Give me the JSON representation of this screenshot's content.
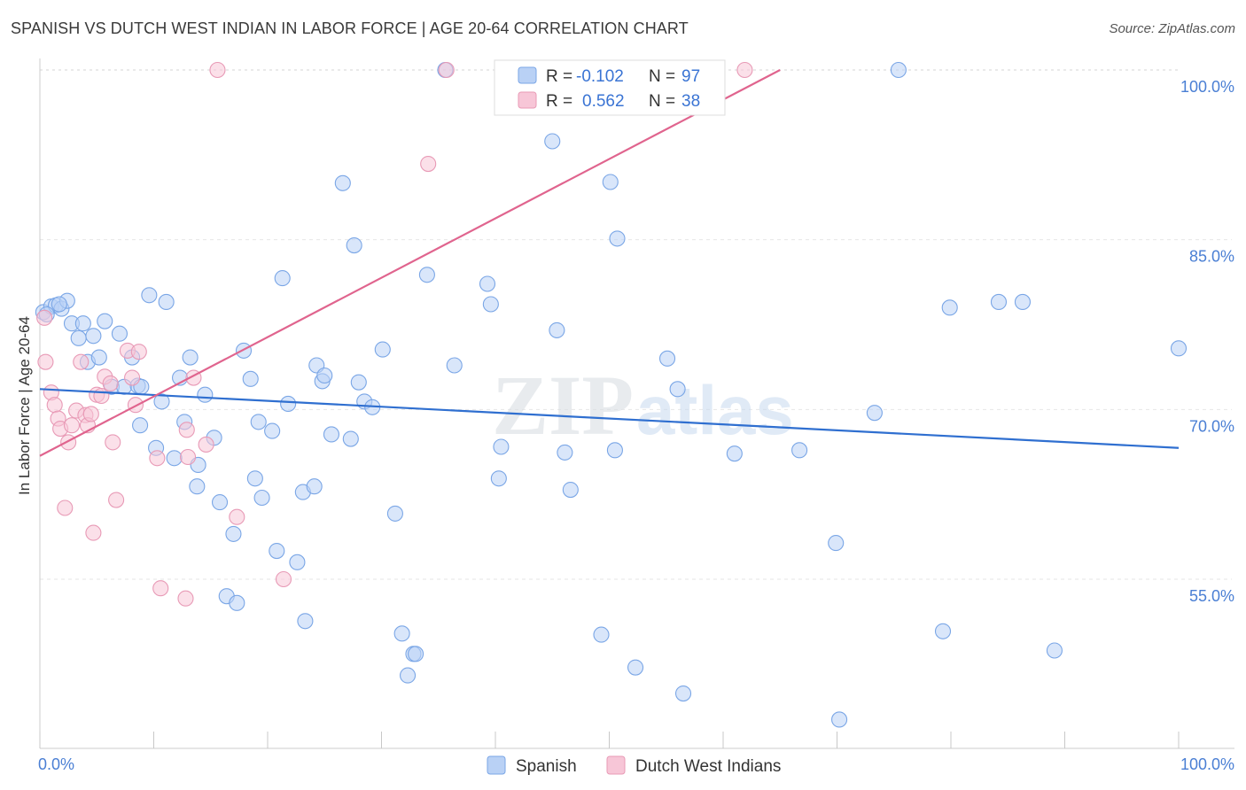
{
  "title": "SPANISH VS DUTCH WEST INDIAN IN LABOR FORCE | AGE 20-64 CORRELATION CHART",
  "source": "Source: ZipAtlas.com",
  "watermark": {
    "zip": "ZIP",
    "atlas": "atlas"
  },
  "chart_data": {
    "type": "scatter",
    "title": "SPANISH VS DUTCH WEST INDIAN IN LABOR FORCE | AGE 20-64 CORRELATION CHART",
    "xlabel": "",
    "ylabel": "In Labor Force | Age 20-64",
    "xlim": [
      0,
      100
    ],
    "ylim": [
      40.5,
      102
    ],
    "x_tick_labels": [
      {
        "value": 0,
        "label": "0.0%"
      },
      {
        "value": 100,
        "label": "100.0%"
      }
    ],
    "y_ticks": [
      {
        "value": 100,
        "label": "100.0%"
      },
      {
        "value": 85,
        "label": "85.0%"
      },
      {
        "value": 70,
        "label": "70.0%"
      },
      {
        "value": 55,
        "label": "55.0%"
      }
    ],
    "grid": true,
    "legend_position": "top-center",
    "series": [
      {
        "name": "Spanish",
        "color": "#7aa6e6",
        "fill": "#b9d1f5",
        "R": "-0.102",
        "N": "97",
        "trend": {
          "x0": 0,
          "y0": 71.8,
          "x1": 100,
          "y1": 66.6,
          "color": "#2f6fd0"
        },
        "points": [
          [
            0.3,
            78.6
          ],
          [
            1.0,
            79.1
          ],
          [
            1.4,
            79.2
          ],
          [
            1.9,
            78.9
          ],
          [
            2.4,
            79.6
          ],
          [
            2.8,
            77.6
          ],
          [
            3.4,
            76.3
          ],
          [
            3.8,
            77.6
          ],
          [
            4.2,
            74.2
          ],
          [
            4.7,
            76.5
          ],
          [
            5.2,
            74.6
          ],
          [
            5.7,
            77.8
          ],
          [
            6.3,
            72.0
          ],
          [
            7.0,
            76.7
          ],
          [
            7.4,
            72.0
          ],
          [
            8.1,
            74.6
          ],
          [
            8.6,
            72.1
          ],
          [
            8.9,
            72.0
          ],
          [
            8.8,
            68.6
          ],
          [
            9.6,
            80.1
          ],
          [
            10.2,
            66.6
          ],
          [
            10.7,
            70.7
          ],
          [
            11.1,
            79.5
          ],
          [
            11.8,
            65.7
          ],
          [
            12.3,
            72.8
          ],
          [
            12.7,
            68.9
          ],
          [
            13.2,
            74.6
          ],
          [
            13.8,
            63.2
          ],
          [
            13.9,
            65.1
          ],
          [
            14.5,
            71.3
          ],
          [
            15.3,
            67.5
          ],
          [
            15.8,
            61.8
          ],
          [
            16.4,
            53.5
          ],
          [
            17.0,
            59.0
          ],
          [
            17.3,
            52.9
          ],
          [
            17.9,
            75.2
          ],
          [
            18.5,
            72.7
          ],
          [
            18.9,
            63.9
          ],
          [
            19.2,
            68.9
          ],
          [
            19.5,
            62.2
          ],
          [
            20.4,
            68.1
          ],
          [
            20.8,
            57.5
          ],
          [
            21.3,
            81.6
          ],
          [
            21.8,
            70.5
          ],
          [
            22.6,
            56.5
          ],
          [
            23.1,
            62.7
          ],
          [
            23.3,
            51.3
          ],
          [
            24.1,
            63.2
          ],
          [
            24.3,
            73.9
          ],
          [
            24.8,
            72.5
          ],
          [
            25.6,
            67.8
          ],
          [
            26.6,
            90.0
          ],
          [
            27.3,
            67.4
          ],
          [
            27.6,
            84.5
          ],
          [
            28.0,
            72.4
          ],
          [
            28.5,
            70.7
          ],
          [
            29.2,
            70.2
          ],
          [
            30.1,
            75.3
          ],
          [
            31.2,
            60.8
          ],
          [
            31.8,
            50.2
          ],
          [
            32.3,
            46.5
          ],
          [
            32.8,
            48.4
          ],
          [
            33.0,
            48.4
          ],
          [
            34.0,
            81.9
          ],
          [
            35.6,
            100.0
          ],
          [
            36.4,
            73.9
          ],
          [
            39.3,
            81.1
          ],
          [
            39.6,
            79.3
          ],
          [
            40.5,
            66.7
          ],
          [
            40.3,
            63.9
          ],
          [
            45.0,
            93.7
          ],
          [
            45.4,
            77.0
          ],
          [
            46.1,
            66.2
          ],
          [
            46.6,
            62.9
          ],
          [
            49.3,
            50.1
          ],
          [
            50.1,
            90.1
          ],
          [
            50.5,
            66.4
          ],
          [
            50.7,
            85.1
          ],
          [
            52.3,
            47.2
          ],
          [
            55.1,
            74.5
          ],
          [
            56.0,
            71.8
          ],
          [
            56.5,
            44.9
          ],
          [
            61.0,
            66.1
          ],
          [
            66.7,
            66.4
          ],
          [
            69.9,
            58.2
          ],
          [
            70.2,
            42.6
          ],
          [
            73.3,
            69.7
          ],
          [
            75.4,
            100.0
          ],
          [
            79.3,
            50.4
          ],
          [
            79.9,
            79.0
          ],
          [
            84.2,
            79.5
          ],
          [
            86.3,
            79.5
          ],
          [
            89.1,
            48.7
          ],
          [
            100.0,
            75.4
          ],
          [
            0.6,
            78.4
          ],
          [
            1.7,
            79.3
          ],
          [
            25.0,
            73.0
          ]
        ]
      },
      {
        "name": "Dutch West Indians",
        "color": "#e89ab6",
        "fill": "#f7c6d7",
        "R": "0.562",
        "N": "38",
        "trend": {
          "x0": 0,
          "y0": 65.9,
          "x1": 65.0,
          "y1": 100.0,
          "color": "#e0648e"
        },
        "points": [
          [
            0.4,
            78.1
          ],
          [
            0.5,
            74.2
          ],
          [
            1.0,
            71.5
          ],
          [
            1.3,
            70.4
          ],
          [
            1.6,
            69.2
          ],
          [
            1.8,
            68.3
          ],
          [
            2.2,
            61.3
          ],
          [
            2.5,
            67.1
          ],
          [
            2.8,
            68.6
          ],
          [
            3.2,
            69.9
          ],
          [
            3.6,
            74.2
          ],
          [
            4.0,
            69.5
          ],
          [
            4.2,
            68.6
          ],
          [
            4.5,
            69.6
          ],
          [
            4.7,
            59.1
          ],
          [
            5.0,
            71.3
          ],
          [
            5.4,
            71.2
          ],
          [
            5.7,
            72.9
          ],
          [
            6.2,
            72.3
          ],
          [
            6.4,
            67.1
          ],
          [
            6.7,
            62.0
          ],
          [
            7.7,
            75.2
          ],
          [
            8.1,
            72.8
          ],
          [
            8.4,
            70.4
          ],
          [
            8.7,
            75.1
          ],
          [
            10.3,
            65.7
          ],
          [
            10.6,
            54.2
          ],
          [
            12.8,
            53.3
          ],
          [
            12.9,
            68.2
          ],
          [
            13.0,
            65.8
          ],
          [
            13.5,
            72.8
          ],
          [
            14.6,
            66.9
          ],
          [
            15.6,
            100.0
          ],
          [
            17.3,
            60.5
          ],
          [
            21.4,
            55.0
          ],
          [
            34.1,
            91.7
          ],
          [
            35.7,
            100.0
          ],
          [
            61.9,
            100.0
          ]
        ]
      }
    ]
  }
}
